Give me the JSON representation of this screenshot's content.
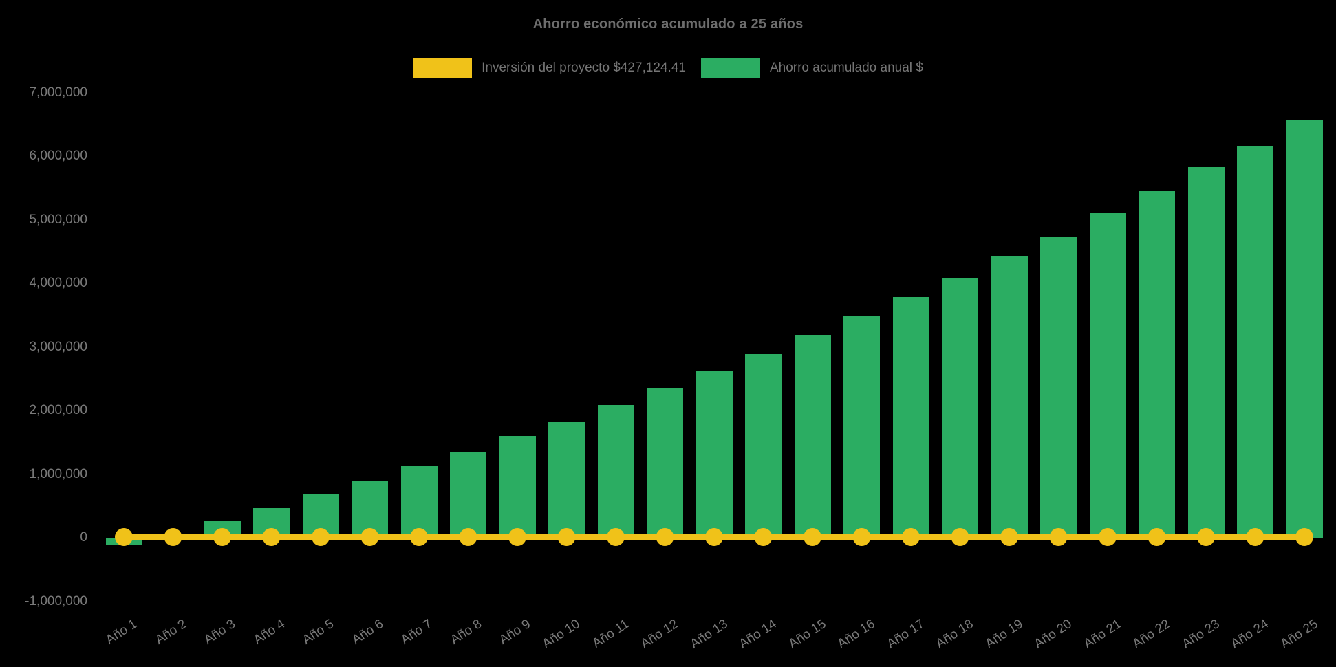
{
  "chart_data": {
    "type": "bar",
    "title": "Ahorro económico acumulado a 25 años",
    "background": "#000000",
    "text_color": "#757575",
    "grid": false,
    "legend_position": "top",
    "categories": [
      "Año 1",
      "Año 2",
      "Año 3",
      "Año 4",
      "Año 5",
      "Año 6",
      "Año 7",
      "Año 8",
      "Año 9",
      "Año 10",
      "Año 11",
      "Año 12",
      "Año 13",
      "Año 14",
      "Año 15",
      "Año 16",
      "Año 17",
      "Año 18",
      "Año 19",
      "Año 20",
      "Año 21",
      "Año 22",
      "Año 23",
      "Año 24",
      "Año 25"
    ],
    "series": [
      {
        "name": "Inversión del proyecto $427,124.41",
        "type": "line",
        "color": "#F0C219",
        "marker": "circle",
        "plotted_value": 0
      },
      {
        "name": "Ahorro acumulado anual $",
        "type": "bar",
        "color": "#2BAD62",
        "values": [
          -120000,
          60000,
          260000,
          460000,
          680000,
          890000,
          1120000,
          1350000,
          1600000,
          1830000,
          2090000,
          2360000,
          2620000,
          2890000,
          3190000,
          3480000,
          3780000,
          4080000,
          4420000,
          4740000,
          5100000,
          5450000,
          5830000,
          6160000,
          6560000
        ]
      }
    ],
    "ylim": [
      -1000000,
      7000000
    ],
    "ytick_step": 1000000,
    "ytick_labels": [
      "7,000,000",
      "6,000,000",
      "5,000,000",
      "4,000,000",
      "3,000,000",
      "2,000,000",
      "1,000,000",
      "0",
      "-1,000,000"
    ],
    "ytick_values": [
      7000000,
      6000000,
      5000000,
      4000000,
      3000000,
      2000000,
      1000000,
      0,
      -1000000
    ]
  }
}
